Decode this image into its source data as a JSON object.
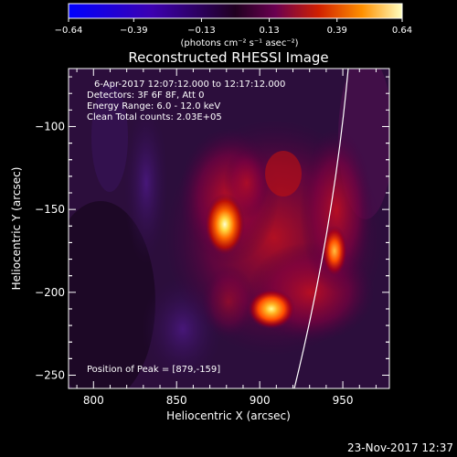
{
  "chart_data": {
    "type": "heatmap",
    "title": "Reconstructed RHESSI Image",
    "xlabel": "Heliocentric X (arcsec)",
    "ylabel": "Heliocentric Y (arcsec)",
    "xlim": [
      785,
      978
    ],
    "ylim": [
      -258,
      -65
    ],
    "xticks": [
      "800",
      "850",
      "900",
      "950"
    ],
    "yticks": [
      "−100",
      "−150",
      "−200",
      "−250"
    ],
    "colorbar": {
      "ticks": [
        "−0.64",
        "−0.39",
        "−0.13",
        "0.13",
        "0.39",
        "0.64"
      ],
      "range": [
        -0.64,
        0.64
      ],
      "label": "(photons cm⁻² s⁻¹ asec⁻²)"
    },
    "annotations": [
      "6-Apr-2017 12:07:12.000 to 12:17:12.000",
      "Detectors: 3F 6F 8F, Att 0",
      "Energy Range: 6.0 - 12.0 keV",
      "Clean    Total counts: 2.03E+05"
    ],
    "peak_label": "Position of Peak = [879,-159]",
    "peak": [
      879,
      -159
    ],
    "sources": [
      {
        "x": 879,
        "y": -159,
        "intensity": 0.64
      },
      {
        "x": 907,
        "y": -210,
        "intensity": 0.55
      },
      {
        "x": 945,
        "y": -175,
        "intensity": 0.45
      }
    ]
  },
  "footer": {
    "timestamp": "23-Nov-2017 12:37"
  }
}
